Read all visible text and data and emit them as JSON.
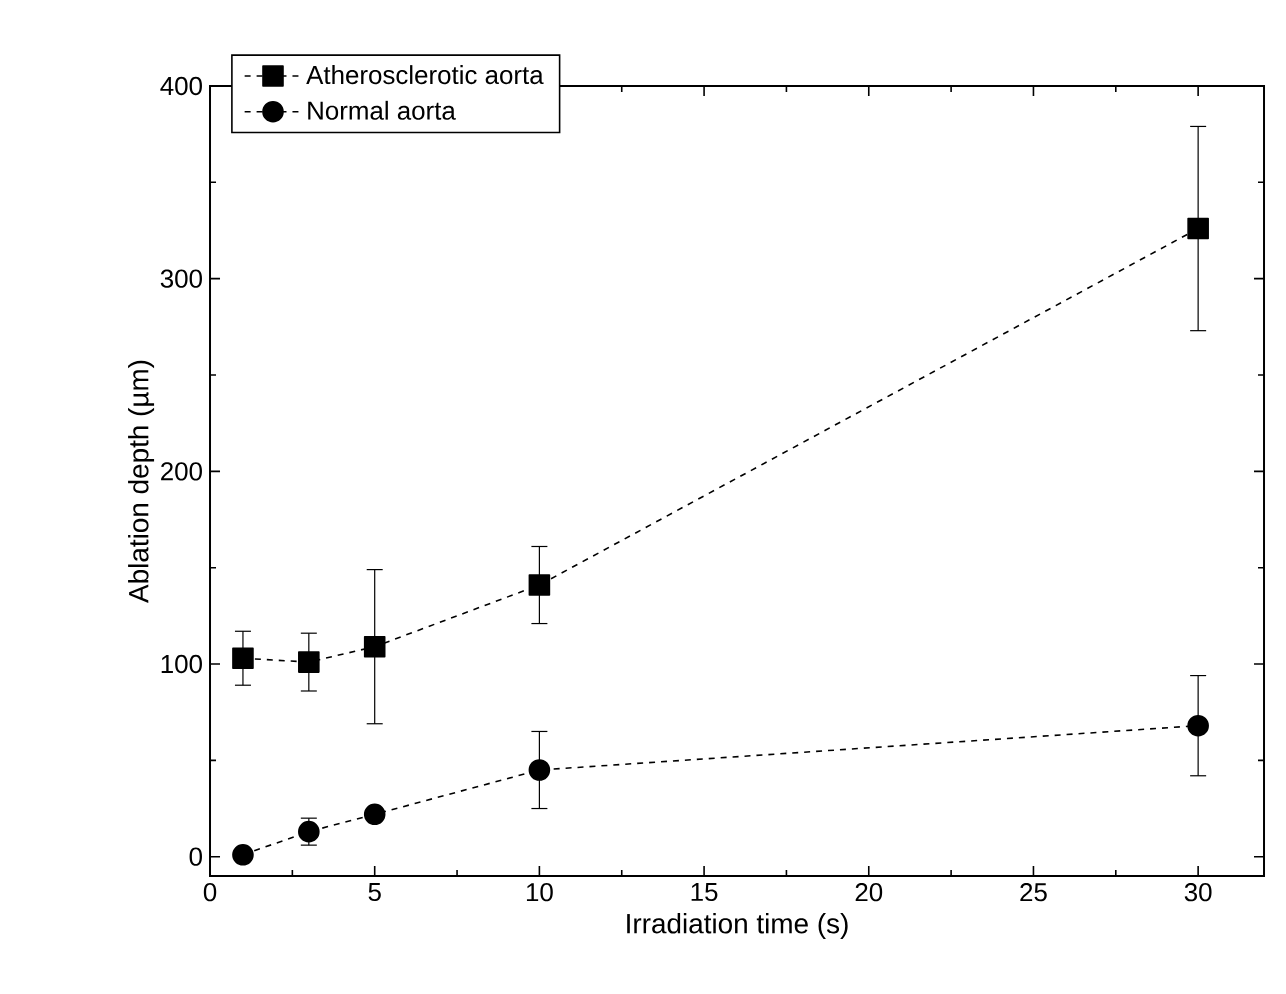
{
  "chart_data": {
    "type": "line",
    "xlabel": "Irradiation time (s)",
    "ylabel": "Ablation depth (µm)",
    "x": [
      1,
      3,
      5,
      10,
      30
    ],
    "series": [
      {
        "name": "Atherosclerotic aorta",
        "color": "#000000",
        "marker": "square",
        "values": [
          103,
          101,
          109,
          141,
          326
        ],
        "errors": [
          14,
          15,
          40,
          20,
          53
        ]
      },
      {
        "name": "Normal aorta",
        "color": "#000000",
        "marker": "circle",
        "values": [
          1,
          13,
          22,
          45,
          68
        ],
        "errors": [
          null,
          7,
          null,
          20,
          26
        ]
      }
    ],
    "xlim": [
      0,
      32
    ],
    "ylim": [
      -10,
      400
    ],
    "xticks": [
      0,
      5,
      10,
      15,
      20,
      25,
      30
    ],
    "yticks": [
      0,
      100,
      200,
      300,
      400
    ],
    "grid": false,
    "legend": "top left",
    "line_style": "dashed"
  }
}
